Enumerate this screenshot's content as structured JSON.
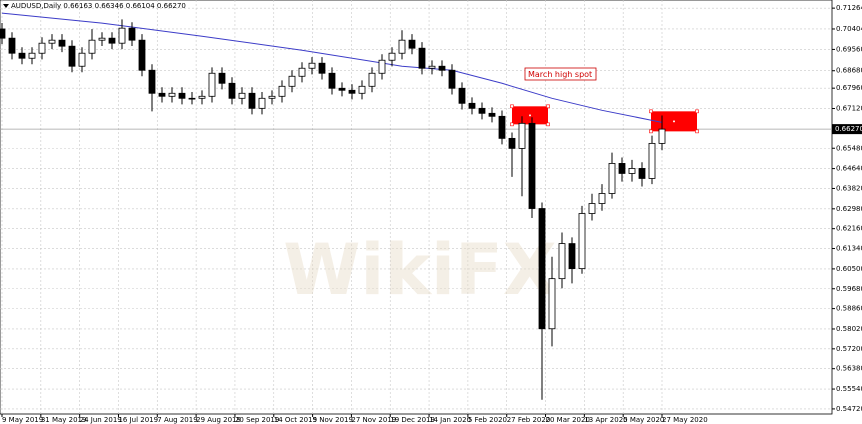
{
  "chart_data": {
    "type": "candlestick",
    "header": "AUDUSD,Daily  0.66163 0.66346 0.66104 0.66270",
    "annotation": "March high  spot",
    "watermark": "WikiFX",
    "ylim": [
      0.5451,
      0.716
    ],
    "yticks": [
      0.71264,
      0.70404,
      {
        "value": 0.6956,
        "label": "0.69560"
      },
      {
        "value": 0.6868,
        "label": "0.68680"
      },
      {
        "value": 0.6796,
        "label": "0.67960"
      },
      {
        "value": 0.6712,
        "label": "0.67120"
      },
      {
        "value": 0.6548,
        "label": "0.65480"
      },
      {
        "value": 0.6464,
        "label": "0.64640"
      },
      {
        "value": 0.6382,
        "label": "0.63820"
      },
      {
        "value": 0.6298,
        "label": "0.62980"
      },
      {
        "value": 0.6216,
        "label": "0.62160"
      },
      {
        "value": 0.6134,
        "label": "0.61340"
      },
      {
        "value": 0.605,
        "label": "0.60500"
      },
      {
        "value": 0.5968,
        "label": "0.59680"
      },
      {
        "value": 0.5886,
        "label": "0.58860"
      },
      {
        "value": 0.5802,
        "label": "0.58020"
      },
      {
        "value": 0.572,
        "label": "0.57200"
      },
      {
        "value": 0.5638,
        "label": "0.56380"
      },
      {
        "value": 0.5554,
        "label": "0.55540"
      },
      {
        "value": 0.5472,
        "label": "0.54720"
      }
    ],
    "current_price": {
      "value": 0.6627,
      "label": "0.66270"
    },
    "x_labels": [
      "9 May 2019",
      "31 May 2019",
      "24 Jun 2019",
      "16 Jul 2019",
      "7 Aug 2019",
      "29 Aug 2019",
      "20 Sep 2019",
      "14 Oct 2019",
      "5 Nov 2019",
      "27 Nov 2019",
      "19 Dec 2019",
      "14 Jan 2020",
      "5 Feb 2020",
      "27 Feb 2020",
      "20 Mar 2020",
      "13 Apr 2020",
      "5 May 2020",
      "27 May 2020"
    ],
    "grid": true,
    "open": [
      0.70404,
      0.70024,
      0.69403,
      0.69196,
      0.69403,
      0.69817,
      0.69941,
      0.69693,
      0.68866,
      0.69403,
      0.69941,
      0.70024,
      0.69817,
      0.70437,
      0.69941,
      0.687,
      0.67749,
      0.67625,
      0.67749,
      0.67542,
      0.67542,
      0.67625,
      0.68576,
      0.68162,
      0.67542,
      0.67749,
      0.67128,
      0.67542,
      0.67625,
      0.68038,
      0.68452,
      0.68783,
      0.6899,
      0.68576,
      0.67956,
      0.67873,
      0.67749,
      0.68038,
      0.68576,
      0.69114,
      0.69403,
      0.69941,
      0.6961,
      0.68783,
      0.68866,
      0.687,
      0.67956,
      0.67335,
      0.67128,
      0.66922,
      0.66798,
      0.65888,
      0.65474,
      0.66508,
      0.62992,
      0.58029,
      0.60097,
      0.61545,
      0.60511,
      0.62786,
      0.63199,
      0.63613,
      0.64854,
      0.6444,
      0.64647,
      0.64233,
      0.65681
    ],
    "high": [
      0.7065,
      0.7027,
      0.6965,
      0.6965,
      0.7006,
      0.7019,
      0.7019,
      0.6994,
      0.6965,
      0.704,
      0.7027,
      0.7027,
      0.708,
      0.7068,
      0.7019,
      0.6895,
      0.68,
      0.68,
      0.68,
      0.678,
      0.6787,
      0.6882,
      0.6882,
      0.6841,
      0.68,
      0.68,
      0.678,
      0.6787,
      0.6828,
      0.687,
      0.6903,
      0.6924,
      0.6924,
      0.6882,
      0.682,
      0.6812,
      0.6828,
      0.6882,
      0.6936,
      0.6965,
      0.7035,
      0.7019,
      0.6986,
      0.6911,
      0.6911,
      0.6895,
      0.682,
      0.6758,
      0.6737,
      0.6717,
      0.6704,
      0.6613,
      0.668,
      0.6676,
      0.6324,
      0.61,
      0.62,
      0.618,
      0.631,
      0.636,
      0.64,
      0.653,
      0.651,
      0.65,
      0.649,
      0.66,
      0.6683
    ],
    "low": [
      0.6978,
      0.6915,
      0.6895,
      0.6895,
      0.6915,
      0.6957,
      0.6945,
      0.6862,
      0.6862,
      0.6915,
      0.697,
      0.6957,
      0.6957,
      0.697,
      0.6845,
      0.67,
      0.6737,
      0.6737,
      0.6729,
      0.6729,
      0.6729,
      0.6737,
      0.6791,
      0.6729,
      0.6729,
      0.6688,
      0.6688,
      0.6729,
      0.6737,
      0.6779,
      0.682,
      0.6853,
      0.6832,
      0.677,
      0.6762,
      0.675,
      0.675,
      0.6779,
      0.6832,
      0.6886,
      0.6915,
      0.6936,
      0.6853,
      0.6853,
      0.6845,
      0.677,
      0.6708,
      0.6688,
      0.6667,
      0.6655,
      0.6564,
      0.643,
      0.635,
      0.626,
      0.551,
      0.573,
      0.597,
      0.599,
      0.603,
      0.625,
      0.629,
      0.634,
      0.641,
      0.641,
      0.639,
      0.64,
      0.654
    ],
    "close": [
      0.70024,
      0.69403,
      0.69196,
      0.69403,
      0.69817,
      0.69941,
      0.69693,
      0.68866,
      0.69403,
      0.69941,
      0.70024,
      0.69817,
      0.70437,
      0.69941,
      0.687,
      0.67749,
      0.67625,
      0.67749,
      0.67542,
      0.67542,
      0.67625,
      0.68576,
      0.68162,
      0.67542,
      0.67749,
      0.67128,
      0.67542,
      0.67625,
      0.68038,
      0.68452,
      0.68783,
      0.6899,
      0.68576,
      0.67956,
      0.67873,
      0.67749,
      0.68038,
      0.68576,
      0.69114,
      0.69403,
      0.69941,
      0.6961,
      0.68783,
      0.68866,
      0.687,
      0.67956,
      0.67335,
      0.67128,
      0.66922,
      0.66798,
      0.65888,
      0.65474,
      0.66508,
      0.62992,
      0.58029,
      0.60097,
      0.61545,
      0.60511,
      0.62786,
      0.63199,
      0.63613,
      0.64854,
      0.6444,
      0.64647,
      0.64233,
      0.65681,
      0.6627
    ],
    "moving_average": {
      "color": "#3c3cc8",
      "x": [
        0,
        10,
        20,
        30,
        40,
        45,
        50,
        55,
        60,
        65,
        66
      ],
      "values": [
        0.71058,
        0.70644,
        0.70106,
        0.69527,
        0.68865,
        0.687,
        0.68162,
        0.67542,
        0.67046,
        0.66632,
        0.6655
      ]
    },
    "zones": [
      {
        "color": "#ff0000",
        "x": [
          51,
          54.6
        ],
        "y": [
          0.66467,
          0.67211
        ]
      },
      {
        "color": "#ff0000",
        "x": [
          64.9,
          69.5
        ],
        "y": [
          0.66177,
          0.67004
        ]
      }
    ]
  }
}
